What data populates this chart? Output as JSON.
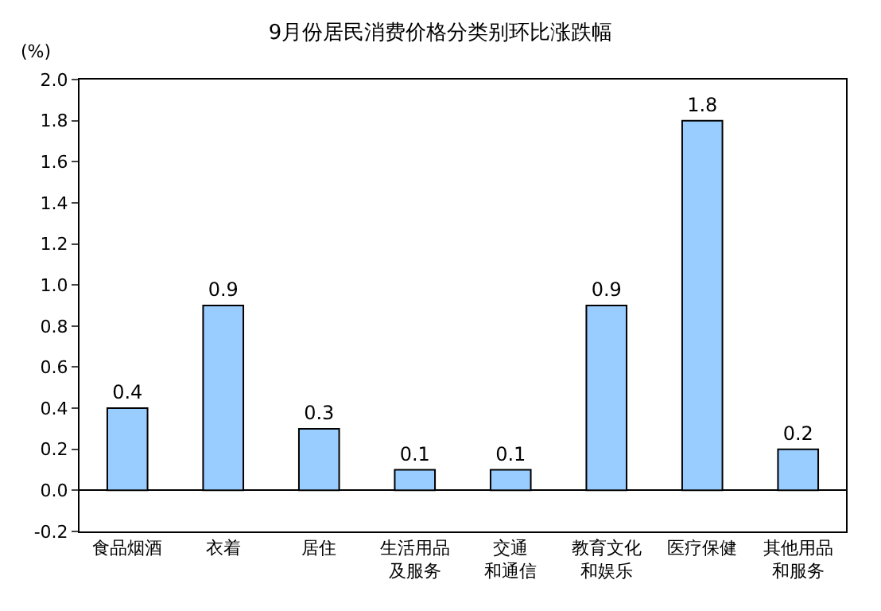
{
  "chart_data": {
    "type": "bar",
    "title": "9月份居民消费价格分类别环比涨跌幅",
    "ylabel": "(%)",
    "categories": [
      "食品烟酒",
      "衣着",
      "居住",
      "生活用品及服务",
      "交通和通信",
      "教育文化和娱乐",
      "医疗保健",
      "其他用品和服务"
    ],
    "values": [
      0.4,
      0.9,
      0.3,
      0.1,
      0.1,
      0.9,
      1.8,
      0.2
    ],
    "color": "#99ccff",
    "ylim": [
      -0.2,
      2.0
    ],
    "yticks": [
      -0.2,
      {
        "value": 0,
        "label": "0.0"
      },
      0.2,
      0.4,
      0.6,
      0.8,
      {
        "value": 1,
        "label": "1.0"
      },
      1.2,
      1.4,
      1.6,
      1.8,
      {
        "value": 2,
        "label": "2.0"
      }
    ],
    "data_labels": true
  }
}
